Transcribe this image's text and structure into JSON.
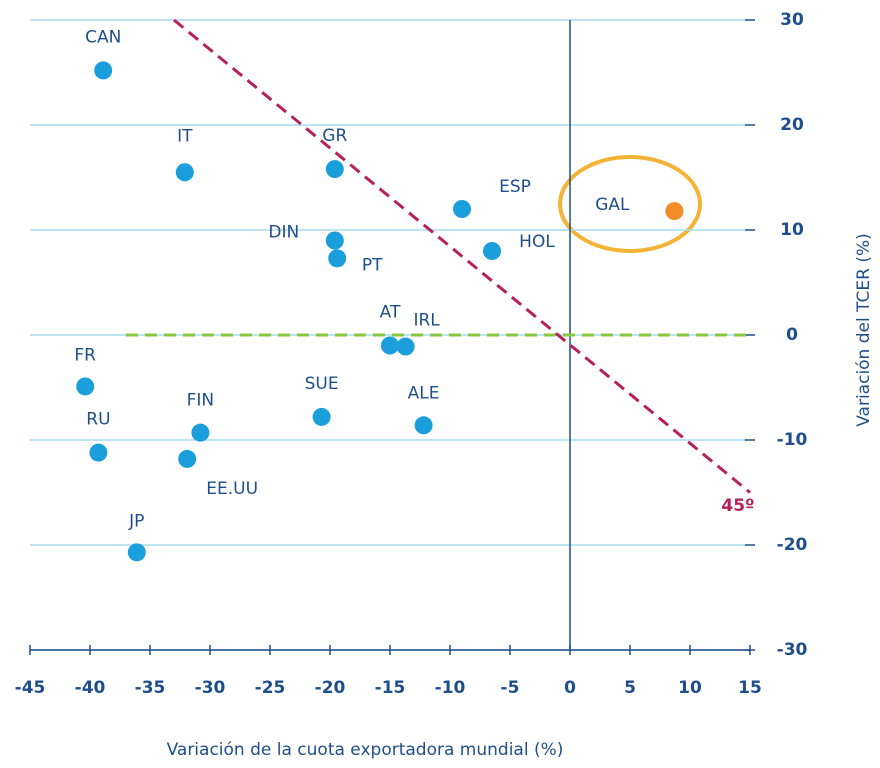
{
  "chart_data": {
    "type": "scatter",
    "x_label": "Variación de la cuota exportadora mundial (%)",
    "y_label": "Variación del TCER (%)",
    "xlim": [
      -45,
      15
    ],
    "xticks": [
      -45,
      -40,
      -35,
      -30,
      -25,
      -20,
      -15,
      -10,
      -5,
      0,
      5,
      10,
      15
    ],
    "ylim": [
      -30,
      30
    ],
    "yticks": [
      -30,
      -20,
      -10,
      0,
      10,
      20,
      30
    ],
    "grid": true,
    "points": [
      {
        "label": "CAN",
        "x": -38.9,
        "y": 25.2,
        "color": "#1a9fdc"
      },
      {
        "label": "IT",
        "x": -32.1,
        "y": 15.5,
        "color": "#1a9fdc"
      },
      {
        "label": "GR",
        "x": -19.6,
        "y": 15.8,
        "color": "#1a9fdc"
      },
      {
        "label": "ESP",
        "x": -9.0,
        "y": 12.0,
        "color": "#1a9fdc"
      },
      {
        "label": "GAL",
        "x": 8.7,
        "y": 11.8,
        "color": "#f28c28"
      },
      {
        "label": "DIN",
        "x": -19.6,
        "y": 9.0,
        "color": "#1a9fdc"
      },
      {
        "label": "PT",
        "x": -19.4,
        "y": 7.3,
        "color": "#1a9fdc"
      },
      {
        "label": "HOL",
        "x": -6.5,
        "y": 8.0,
        "color": "#1a9fdc"
      },
      {
        "label": "AT",
        "x": -15.0,
        "y": -1.0,
        "color": "#1a9fdc"
      },
      {
        "label": "IRL",
        "x": -13.7,
        "y": -1.1,
        "color": "#1a9fdc"
      },
      {
        "label": "FR",
        "x": -40.4,
        "y": -4.9,
        "color": "#1a9fdc"
      },
      {
        "label": "SUE",
        "x": -20.7,
        "y": -7.8,
        "color": "#1a9fdc"
      },
      {
        "label": "ALE",
        "x": -12.2,
        "y": -8.6,
        "color": "#1a9fdc"
      },
      {
        "label": "FIN",
        "x": -30.8,
        "y": -9.3,
        "color": "#1a9fdc"
      },
      {
        "label": "RU",
        "x": -39.3,
        "y": -11.2,
        "color": "#1a9fdc"
      },
      {
        "label": "EE.UU",
        "x": -31.9,
        "y": -11.8,
        "color": "#1a9fdc"
      },
      {
        "label": "JP",
        "x": -36.1,
        "y": -20.7,
        "color": "#1a9fdc"
      }
    ],
    "reference_line": {
      "label": "45º",
      "x": [
        -33,
        15
      ],
      "y": [
        30,
        -15
      ],
      "color": "#b5205e"
    },
    "zero_line": {
      "x": [
        -37,
        15
      ],
      "y": [
        0,
        0
      ],
      "color": "#8dc63f"
    }
  }
}
